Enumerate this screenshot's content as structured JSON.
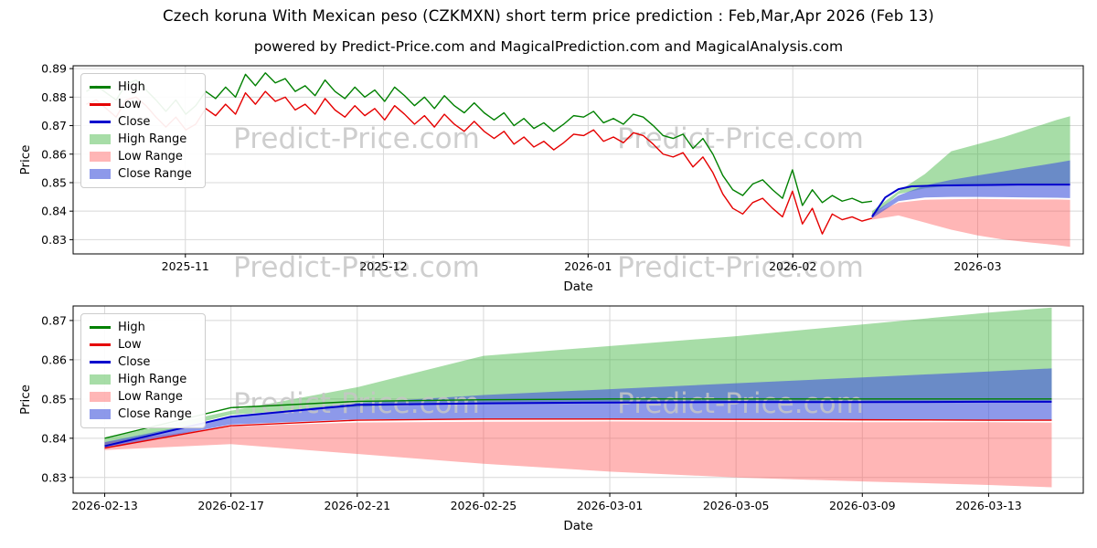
{
  "title": "Czech koruna With Mexican peso (CZKMXN) short term price prediction : Feb,Mar,Apr 2026 (Feb 13)",
  "subtitle": "powered by Predict-Price.com and MagicalPrediction.com and MagicalAnalysis.com",
  "watermark": {
    "text": "Predict-Price.com",
    "color": "#c6c6c6"
  },
  "colors": {
    "high": "#008000",
    "low": "#e50000",
    "close": "#0000cd",
    "high_range": "rgba(60,179,60,0.45)",
    "low_range": "rgba(255,80,80,0.42)",
    "close_range": "rgba(65,85,220,0.6)",
    "grid": "#d8d8d8",
    "axis": "#000000"
  },
  "legend": {
    "items": [
      {
        "label": "High",
        "type": "line",
        "color_key": "high"
      },
      {
        "label": "Low",
        "type": "line",
        "color_key": "low"
      },
      {
        "label": "Close",
        "type": "line",
        "color_key": "close"
      },
      {
        "label": "High Range",
        "type": "patch",
        "color_key": "high_range"
      },
      {
        "label": "Low Range",
        "type": "patch",
        "color_key": "low_range"
      },
      {
        "label": "Close Range",
        "type": "patch",
        "color_key": "close_range"
      }
    ]
  },
  "chart_data": [
    {
      "type": "line",
      "name": "price-history-with-forecast",
      "xlabel": "Date",
      "ylabel": "Price",
      "x_axis_note": "x in days, 0 = 2025-10-20; forecast begins 2026-02-13 (x=121), ends 2026-03-15 (x=151)",
      "xlim": [
        0,
        153
      ],
      "ylim": [
        0.825,
        0.891
      ],
      "xticks": [
        {
          "x": 17,
          "label": "2025-11"
        },
        {
          "x": 47,
          "label": "2025-12"
        },
        {
          "x": 78,
          "label": "2026-01"
        },
        {
          "x": 109,
          "label": "2026-02"
        },
        {
          "x": 137,
          "label": "2026-03"
        }
      ],
      "yticks": [
        0.83,
        0.84,
        0.85,
        0.86,
        0.87,
        0.88,
        0.89
      ],
      "bands": [
        {
          "name": "High Range",
          "color_key": "high_range",
          "x": [
            121,
            125,
            129,
            133,
            137,
            141,
            145,
            149,
            151
          ],
          "upper": [
            0.84,
            0.847,
            0.853,
            0.861,
            0.8635,
            0.866,
            0.869,
            0.872,
            0.8733
          ],
          "lower": [
            0.838,
            0.846,
            0.848,
            0.849,
            0.8491,
            0.8492,
            0.8493,
            0.8493,
            0.8493
          ]
        },
        {
          "name": "Low Range",
          "color_key": "low_range",
          "x": [
            121,
            125,
            129,
            133,
            137,
            141,
            145,
            149,
            151
          ],
          "upper": [
            0.839,
            0.843,
            0.844,
            0.8442,
            0.8443,
            0.8442,
            0.8441,
            0.8441,
            0.844
          ],
          "lower": [
            0.837,
            0.8385,
            0.836,
            0.8335,
            0.8315,
            0.83,
            0.829,
            0.8281,
            0.8275
          ]
        },
        {
          "name": "Close Range",
          "color_key": "close_range",
          "x": [
            121,
            125,
            129,
            133,
            137,
            141,
            145,
            149,
            151
          ],
          "upper": [
            0.839,
            0.8455,
            0.849,
            0.851,
            0.8525,
            0.854,
            0.8555,
            0.857,
            0.8578
          ],
          "lower": [
            0.8375,
            0.8435,
            0.8448,
            0.845,
            0.845,
            0.8449,
            0.8448,
            0.8447,
            0.8446
          ]
        }
      ],
      "series": [
        {
          "name": "High",
          "color_key": "high",
          "width": 1.4,
          "x_start": 2,
          "x_end": 121,
          "y": [
            0.882,
            0.884,
            0.8815,
            0.879,
            0.8845,
            0.886,
            0.8825,
            0.879,
            0.875,
            0.879,
            0.874,
            0.877,
            0.882,
            0.8795,
            0.8835,
            0.88,
            0.888,
            0.884,
            0.8885,
            0.885,
            0.8865,
            0.882,
            0.884,
            0.8805,
            0.886,
            0.882,
            0.8795,
            0.8835,
            0.88,
            0.8825,
            0.8785,
            0.8835,
            0.8805,
            0.877,
            0.88,
            0.876,
            0.8805,
            0.877,
            0.8745,
            0.878,
            0.8745,
            0.872,
            0.8745,
            0.87,
            0.8725,
            0.869,
            0.871,
            0.868,
            0.8705,
            0.8735,
            0.873,
            0.875,
            0.871,
            0.8725,
            0.8705,
            0.874,
            0.873,
            0.87,
            0.8665,
            0.8655,
            0.867,
            0.862,
            0.8655,
            0.86,
            0.8525,
            0.8475,
            0.8455,
            0.8495,
            0.851,
            0.8475,
            0.8445,
            0.8545,
            0.842,
            0.8475,
            0.843,
            0.8455,
            0.8435,
            0.8445,
            0.843,
            0.8435
          ]
        },
        {
          "name": "Low",
          "color_key": "low",
          "width": 1.4,
          "x_start": 2,
          "x_end": 121,
          "y": [
            0.8775,
            0.879,
            0.876,
            0.873,
            0.879,
            0.88,
            0.877,
            0.873,
            0.8695,
            0.873,
            0.8685,
            0.8705,
            0.876,
            0.8735,
            0.8775,
            0.874,
            0.8815,
            0.8775,
            0.882,
            0.8785,
            0.88,
            0.8755,
            0.8775,
            0.874,
            0.8795,
            0.8755,
            0.873,
            0.877,
            0.8735,
            0.876,
            0.872,
            0.877,
            0.874,
            0.8705,
            0.8735,
            0.8695,
            0.874,
            0.8705,
            0.868,
            0.8715,
            0.868,
            0.8655,
            0.868,
            0.8635,
            0.866,
            0.8625,
            0.8645,
            0.8615,
            0.864,
            0.867,
            0.8665,
            0.8685,
            0.8645,
            0.866,
            0.864,
            0.8675,
            0.8665,
            0.8635,
            0.86,
            0.859,
            0.8605,
            0.8555,
            0.859,
            0.8535,
            0.846,
            0.841,
            0.839,
            0.843,
            0.8445,
            0.841,
            0.838,
            0.847,
            0.8355,
            0.841,
            0.832,
            0.839,
            0.837,
            0.838,
            0.8365,
            0.8375
          ]
        },
        {
          "name": "Close",
          "color_key": "close",
          "width": 2,
          "x": [
            121,
            123,
            125,
            127,
            131,
            135,
            139,
            143,
            147,
            151
          ],
          "y": [
            0.838,
            0.8448,
            0.8477,
            0.8487,
            0.849,
            0.8491,
            0.8492,
            0.8493,
            0.8493,
            0.8493
          ]
        }
      ]
    },
    {
      "type": "line",
      "name": "forecast-detail",
      "xlabel": "Date",
      "ylabel": "Price",
      "forecast_dates": [
        "2026-02-13",
        "2026-02-17",
        "2026-02-21",
        "2026-02-25",
        "2026-03-01",
        "2026-03-05",
        "2026-03-09",
        "2026-03-13",
        "2026-03-15"
      ],
      "xlim": [
        120,
        152
      ],
      "ylim": [
        0.826,
        0.8737
      ],
      "xticks": [
        {
          "x": 121,
          "label": "2026-02-13"
        },
        {
          "x": 125,
          "label": "2026-02-17"
        },
        {
          "x": 129,
          "label": "2026-02-21"
        },
        {
          "x": 133,
          "label": "2026-02-25"
        },
        {
          "x": 137,
          "label": "2026-03-01"
        },
        {
          "x": 141,
          "label": "2026-03-05"
        },
        {
          "x": 145,
          "label": "2026-03-09"
        },
        {
          "x": 149,
          "label": "2026-03-13"
        }
      ],
      "yticks": [
        0.83,
        0.84,
        0.85,
        0.86,
        0.87
      ],
      "bands": [
        {
          "name": "High Range",
          "color_key": "high_range",
          "x": [
            121,
            125,
            129,
            133,
            137,
            141,
            145,
            149,
            151
          ],
          "upper": [
            0.84,
            0.847,
            0.853,
            0.861,
            0.8635,
            0.866,
            0.869,
            0.872,
            0.8733
          ],
          "lower": [
            0.838,
            0.846,
            0.848,
            0.849,
            0.8491,
            0.8492,
            0.8493,
            0.8493,
            0.8493
          ]
        },
        {
          "name": "Low Range",
          "color_key": "low_range",
          "x": [
            121,
            125,
            129,
            133,
            137,
            141,
            145,
            149,
            151
          ],
          "upper": [
            0.839,
            0.843,
            0.844,
            0.8442,
            0.8443,
            0.8442,
            0.8441,
            0.8441,
            0.844
          ],
          "lower": [
            0.837,
            0.8385,
            0.836,
            0.8335,
            0.8315,
            0.83,
            0.829,
            0.8281,
            0.8275
          ]
        },
        {
          "name": "Close Range",
          "color_key": "close_range",
          "x": [
            121,
            125,
            129,
            133,
            137,
            141,
            145,
            149,
            151
          ],
          "upper": [
            0.839,
            0.8455,
            0.849,
            0.851,
            0.8525,
            0.854,
            0.8555,
            0.857,
            0.8578
          ],
          "lower": [
            0.8375,
            0.8435,
            0.8448,
            0.845,
            0.845,
            0.8449,
            0.8448,
            0.8447,
            0.8446
          ]
        }
      ],
      "series": [
        {
          "name": "High",
          "color_key": "high",
          "width": 1.4,
          "x": [
            121,
            125,
            129,
            133,
            137,
            141,
            145,
            149,
            151
          ],
          "y": [
            0.84,
            0.8478,
            0.8494,
            0.8498,
            0.85,
            0.85,
            0.85,
            0.85,
            0.85
          ]
        },
        {
          "name": "Low",
          "color_key": "low",
          "width": 1.4,
          "x": [
            121,
            125,
            129,
            133,
            137,
            141,
            145,
            149,
            151
          ],
          "y": [
            0.8375,
            0.8432,
            0.8446,
            0.8449,
            0.8449,
            0.8448,
            0.8447,
            0.8446,
            0.8446
          ]
        },
        {
          "name": "Close",
          "color_key": "close",
          "width": 2,
          "x": [
            121,
            125,
            129,
            133,
            137,
            141,
            145,
            149,
            151
          ],
          "y": [
            0.838,
            0.8455,
            0.8485,
            0.8489,
            0.8491,
            0.8492,
            0.8492,
            0.8493,
            0.8493
          ]
        }
      ]
    }
  ]
}
